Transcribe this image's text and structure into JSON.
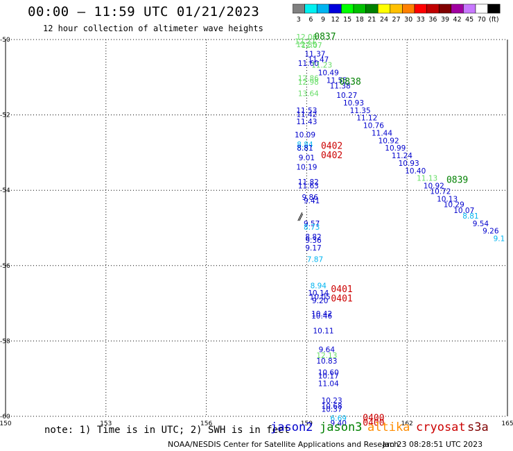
{
  "header": {
    "title": "00:00 – 11:59 UTC 01/21/2023",
    "subtitle": "12 hour collection of altimeter wave heights"
  },
  "colorbar": {
    "labels": [
      "3",
      "6",
      "9",
      "12",
      "15",
      "18",
      "21",
      "24",
      "27",
      "30",
      "33",
      "36",
      "39",
      "42",
      "45",
      "70",
      "(ft)"
    ],
    "colors": [
      "#808080",
      "#00f0f0",
      "#00b4f0",
      "#0000dc",
      "#00ff00",
      "#00c000",
      "#008000",
      "#ffff00",
      "#ffc000",
      "#ff8000",
      "#ff0000",
      "#c00000",
      "#800000",
      "#a000a0",
      "#c878ff",
      "#ffffff",
      "#000000"
    ]
  },
  "footer": {
    "note": "note: 1) Time is in UTC; 2) SWH is in feet",
    "credit": "NOAA/NESDIS Center for Satellite Applications and Research",
    "timestamp": "Jan 23 08:28:51 UTC 2023",
    "satellites": [
      {
        "name": "jason2",
        "color": "#0000cc"
      },
      {
        "name": "jason3",
        "color": "#008000"
      },
      {
        "name": "altika",
        "color": "#ff8c00"
      },
      {
        "name": "cryosat",
        "color": "#cc0000"
      },
      {
        "name": "s3a",
        "color": "#800000"
      }
    ]
  },
  "chart_data": {
    "type": "scatter",
    "xlim": [
      150,
      165
    ],
    "ylim": [
      -60,
      -50
    ],
    "x_ticks": [
      "150",
      "153",
      "156",
      "159",
      "162",
      "165"
    ],
    "y_ticks": [
      "-50",
      "-52",
      "-54",
      "-56",
      "-58",
      "-60"
    ],
    "grid": true,
    "points": [
      {
        "x": 159.0,
        "y": -50.0,
        "label": "12.06",
        "color": "#66dd66"
      },
      {
        "x": 158.95,
        "y": -50.12,
        "label": "12.27",
        "color": "#66dd66"
      },
      {
        "x": 159.0,
        "y": -50.2,
        "label": "12.35",
        "color": "#66dd66"
      },
      {
        "x": 159.15,
        "y": -50.22,
        "label": "12.07",
        "color": "#66dd66"
      },
      {
        "x": 159.25,
        "y": -50.45,
        "label": "11.37",
        "color": "#0000cc"
      },
      {
        "x": 159.35,
        "y": -50.6,
        "label": "11.47",
        "color": "#0000cc"
      },
      {
        "x": 159.05,
        "y": -50.7,
        "label": "11.60",
        "color": "#0000cc"
      },
      {
        "x": 159.45,
        "y": -50.75,
        "label": "11.23",
        "color": "#66dd66"
      },
      {
        "x": 159.65,
        "y": -50.95,
        "label": "10.49",
        "color": "#0000cc"
      },
      {
        "x": 159.9,
        "y": -51.15,
        "label": "11.55",
        "color": "#0000cc"
      },
      {
        "x": 160.0,
        "y": -51.3,
        "label": "11.38",
        "color": "#0000cc"
      },
      {
        "x": 159.05,
        "y": -51.1,
        "label": "12.86",
        "color": "#66dd66"
      },
      {
        "x": 159.05,
        "y": -51.2,
        "label": "12.98",
        "color": "#66dd66"
      },
      {
        "x": 159.05,
        "y": -51.5,
        "label": "13.64",
        "color": "#66dd66"
      },
      {
        "x": 160.2,
        "y": -51.55,
        "label": "10.27",
        "color": "#0000cc"
      },
      {
        "x": 160.4,
        "y": -51.75,
        "label": "10.93",
        "color": "#0000cc"
      },
      {
        "x": 160.6,
        "y": -51.95,
        "label": "11.35",
        "color": "#0000cc"
      },
      {
        "x": 160.8,
        "y": -52.15,
        "label": "11.12",
        "color": "#0000cc"
      },
      {
        "x": 161.0,
        "y": -52.35,
        "label": "10.76",
        "color": "#0000cc"
      },
      {
        "x": 161.25,
        "y": -52.55,
        "label": "11.44",
        "color": "#0000cc"
      },
      {
        "x": 161.45,
        "y": -52.75,
        "label": "10.92",
        "color": "#0000cc"
      },
      {
        "x": 161.65,
        "y": -52.95,
        "label": "10.99",
        "color": "#0000cc"
      },
      {
        "x": 161.85,
        "y": -53.15,
        "label": "11.24",
        "color": "#0000cc"
      },
      {
        "x": 162.05,
        "y": -53.35,
        "label": "10.93",
        "color": "#0000cc"
      },
      {
        "x": 162.25,
        "y": -53.55,
        "label": "10.40",
        "color": "#0000cc"
      },
      {
        "x": 162.6,
        "y": -53.75,
        "label": "11.13",
        "color": "#66dd66"
      },
      {
        "x": 162.8,
        "y": -53.95,
        "label": "10.92",
        "color": "#0000cc"
      },
      {
        "x": 163.0,
        "y": -54.1,
        "label": "10.72",
        "color": "#0000cc"
      },
      {
        "x": 163.2,
        "y": -54.3,
        "label": "10.13",
        "color": "#0000cc"
      },
      {
        "x": 163.4,
        "y": -54.45,
        "label": "10.29",
        "color": "#0000cc"
      },
      {
        "x": 163.7,
        "y": -54.6,
        "label": "10.07",
        "color": "#0000cc"
      },
      {
        "x": 163.9,
        "y": -54.75,
        "label": "8.81",
        "color": "#00b4f0"
      },
      {
        "x": 164.2,
        "y": -54.95,
        "label": "9.54",
        "color": "#0000cc"
      },
      {
        "x": 164.5,
        "y": -55.15,
        "label": "9.26",
        "color": "#0000cc"
      },
      {
        "x": 164.75,
        "y": -55.35,
        "label": "9.1",
        "color": "#00b4f0"
      },
      {
        "x": 159.0,
        "y": -51.95,
        "label": "11.53",
        "color": "#0000cc"
      },
      {
        "x": 159.0,
        "y": -52.05,
        "label": "11.42",
        "color": "#0000cc"
      },
      {
        "x": 159.0,
        "y": -52.25,
        "label": "11.43",
        "color": "#0000cc"
      },
      {
        "x": 158.95,
        "y": -52.6,
        "label": "10.09",
        "color": "#0000cc"
      },
      {
        "x": 158.95,
        "y": -52.85,
        "label": "8.84",
        "color": "#00b4f0"
      },
      {
        "x": 158.95,
        "y": -52.95,
        "label": "8.81",
        "color": "#00b4f0"
      },
      {
        "x": 158.95,
        "y": -52.95,
        "label": "8.81",
        "color": "#0000cc"
      },
      {
        "x": 159.0,
        "y": -53.2,
        "label": "9.01",
        "color": "#0000cc"
      },
      {
        "x": 159.0,
        "y": -53.45,
        "label": "10.19",
        "color": "#0000cc"
      },
      {
        "x": 159.05,
        "y": -53.85,
        "label": "11.82",
        "color": "#0000cc"
      },
      {
        "x": 159.05,
        "y": -53.95,
        "label": "11.63",
        "color": "#0000cc"
      },
      {
        "x": 159.1,
        "y": -54.25,
        "label": "9.86",
        "color": "#0000cc"
      },
      {
        "x": 159.15,
        "y": -54.35,
        "label": "9.41",
        "color": "#0000cc"
      },
      {
        "x": 159.15,
        "y": -54.95,
        "label": "9.57",
        "color": "#0000cc"
      },
      {
        "x": 159.15,
        "y": -55.05,
        "label": "8.73",
        "color": "#00b4f0"
      },
      {
        "x": 159.2,
        "y": -55.3,
        "label": "8.82",
        "color": "#0000cc"
      },
      {
        "x": 159.2,
        "y": -55.4,
        "label": "9.36",
        "color": "#0000cc"
      },
      {
        "x": 159.2,
        "y": -55.6,
        "label": "9.17",
        "color": "#0000cc"
      },
      {
        "x": 159.25,
        "y": -55.9,
        "label": "7.87",
        "color": "#00b4f0"
      },
      {
        "x": 159.35,
        "y": -56.6,
        "label": "8.94",
        "color": "#00b4f0"
      },
      {
        "x": 159.35,
        "y": -56.8,
        "label": "10.14",
        "color": "#0000cc"
      },
      {
        "x": 159.4,
        "y": -56.9,
        "label": "10.05",
        "color": "#0000cc"
      },
      {
        "x": 159.4,
        "y": -57.0,
        "label": "9.20",
        "color": "#0000cc"
      },
      {
        "x": 159.45,
        "y": -57.35,
        "label": "10.42",
        "color": "#0000cc"
      },
      {
        "x": 159.45,
        "y": -57.4,
        "label": "10.46",
        "color": "#0000cc"
      },
      {
        "x": 159.5,
        "y": -57.8,
        "label": "10.11",
        "color": "#0000cc"
      },
      {
        "x": 159.6,
        "y": -58.3,
        "label": "9.64",
        "color": "#0000cc"
      },
      {
        "x": 159.6,
        "y": -58.45,
        "label": "12.13",
        "color": "#66dd66"
      },
      {
        "x": 159.6,
        "y": -58.6,
        "label": "10.83",
        "color": "#0000cc"
      },
      {
        "x": 159.65,
        "y": -58.9,
        "label": "10.60",
        "color": "#0000cc"
      },
      {
        "x": 159.65,
        "y": -59.0,
        "label": "10.17",
        "color": "#0000cc"
      },
      {
        "x": 159.65,
        "y": -59.2,
        "label": "11.04",
        "color": "#0000cc"
      },
      {
        "x": 159.75,
        "y": -59.65,
        "label": "10.23",
        "color": "#0000cc"
      },
      {
        "x": 159.75,
        "y": -59.8,
        "label": "10.68",
        "color": "#0000cc"
      },
      {
        "x": 159.75,
        "y": -59.88,
        "label": "10.37",
        "color": "#0000cc"
      },
      {
        "x": 159.95,
        "y": -60.12,
        "label": "6.69",
        "color": "#00b4f0"
      },
      {
        "x": 159.95,
        "y": -60.25,
        "label": "9.40",
        "color": "#0000cc"
      }
    ],
    "time_labels": [
      {
        "x": 159.55,
        "y": -50.0,
        "label": "0837",
        "color": "#008000"
      },
      {
        "x": 160.3,
        "y": -51.2,
        "label": "0838",
        "color": "#008000"
      },
      {
        "x": 163.5,
        "y": -53.8,
        "label": "0839",
        "color": "#008000"
      },
      {
        "x": 159.75,
        "y": -52.9,
        "label": "0402",
        "color": "#cc0000"
      },
      {
        "x": 159.75,
        "y": -53.15,
        "label": "0402",
        "color": "#cc0000"
      },
      {
        "x": 160.05,
        "y": -56.7,
        "label": "0401",
        "color": "#cc0000"
      },
      {
        "x": 160.05,
        "y": -56.95,
        "label": "0401",
        "color": "#cc0000"
      },
      {
        "x": 161.0,
        "y": -60.12,
        "label": "0400",
        "color": "#cc0000"
      },
      {
        "x": 161.0,
        "y": -60.25,
        "label": "0400",
        "color": "#cc0000"
      }
    ],
    "wind_barbs": [
      {
        "x": 158.8,
        "y": -54.7
      }
    ]
  }
}
